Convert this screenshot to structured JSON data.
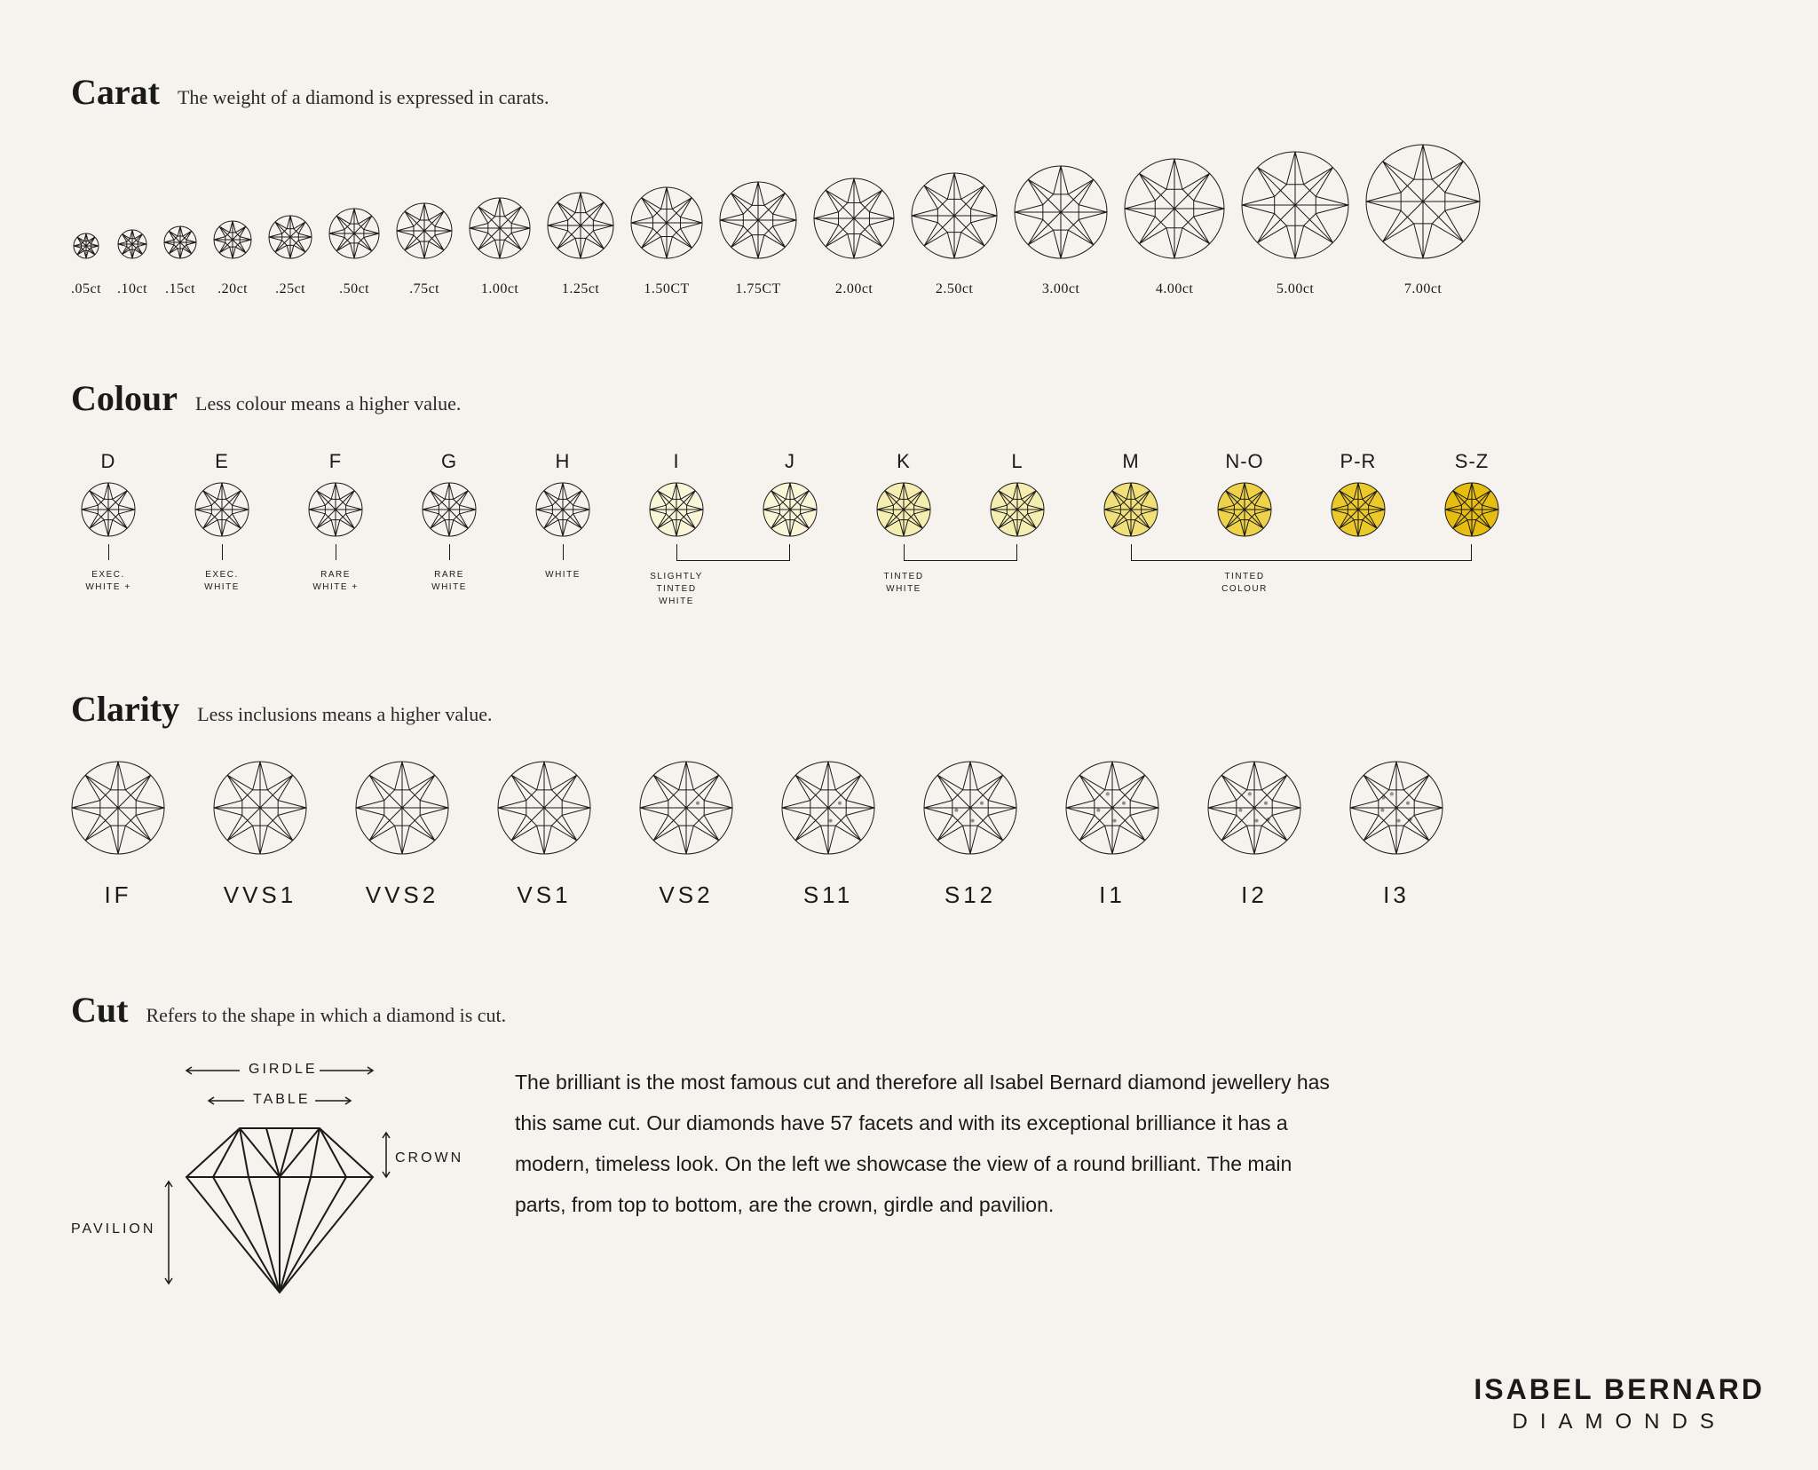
{
  "background_color": "#f6f3ee",
  "stroke_color": "#1a1a1a",
  "carat": {
    "title": "Carat",
    "subtitle": "The weight of a diamond is expressed in carats.",
    "items": [
      {
        "label": ".05ct",
        "size": 30
      },
      {
        "label": ".10ct",
        "size": 34
      },
      {
        "label": ".15ct",
        "size": 38
      },
      {
        "label": ".20ct",
        "size": 44
      },
      {
        "label": ".25ct",
        "size": 50
      },
      {
        "label": ".50ct",
        "size": 58
      },
      {
        "label": ".75ct",
        "size": 64
      },
      {
        "label": "1.00ct",
        "size": 70
      },
      {
        "label": "1.25ct",
        "size": 76
      },
      {
        "label": "1.50CT",
        "size": 82
      },
      {
        "label": "1.75CT",
        "size": 88
      },
      {
        "label": "2.00ct",
        "size": 92
      },
      {
        "label": "2.50ct",
        "size": 98
      },
      {
        "label": "3.00ct",
        "size": 106
      },
      {
        "label": "4.00ct",
        "size": 114
      },
      {
        "label": "5.00ct",
        "size": 122
      },
      {
        "label": "7.00ct",
        "size": 130
      }
    ]
  },
  "colour": {
    "title": "Colour",
    "subtitle": "Less colour means a higher value.",
    "diamond_size": 62,
    "items": [
      {
        "grade": "D",
        "fill": "none",
        "desc": "EXEC.\nWHITE +"
      },
      {
        "grade": "E",
        "fill": "none",
        "desc": "EXEC.\nWHITE"
      },
      {
        "grade": "F",
        "fill": "none",
        "desc": "RARE\nWHITE +"
      },
      {
        "grade": "G",
        "fill": "none",
        "desc": "RARE\nWHITE"
      },
      {
        "grade": "H",
        "fill": "none",
        "desc": "WHITE"
      },
      {
        "grade": "I",
        "fill": "#fbf6d8",
        "desc": ""
      },
      {
        "grade": "J",
        "fill": "#fbf6d8",
        "desc": ""
      },
      {
        "grade": "K",
        "fill": "#f6eeb1",
        "desc": ""
      },
      {
        "grade": "L",
        "fill": "#f6eeb1",
        "desc": ""
      },
      {
        "grade": "M",
        "fill": "#f1e07a",
        "desc": ""
      },
      {
        "grade": "N-O",
        "fill": "#eed34a",
        "desc": ""
      },
      {
        "grade": "P-R",
        "fill": "#ecc92a",
        "desc": ""
      },
      {
        "grade": "S-Z",
        "fill": "#e7bd10",
        "desc": ""
      }
    ],
    "groups": [
      {
        "label": "SLIGHTLY\nTINTED WHITE",
        "from": 5,
        "to": 6
      },
      {
        "label": "TINTED\nWHITE",
        "from": 7,
        "to": 8
      },
      {
        "label": "TINTED\nCOLOUR",
        "from": 9,
        "to": 12
      }
    ]
  },
  "clarity": {
    "title": "Clarity",
    "subtitle": "Less inclusions means a higher value.",
    "diamond_size": 106,
    "items": [
      {
        "label": "IF",
        "inclusions": 0
      },
      {
        "label": "VVS1",
        "inclusions": 0
      },
      {
        "label": "VVS2",
        "inclusions": 0
      },
      {
        "label": "VS1",
        "inclusions": 0
      },
      {
        "label": "VS2",
        "inclusions": 1
      },
      {
        "label": "S11",
        "inclusions": 2
      },
      {
        "label": "S12",
        "inclusions": 3
      },
      {
        "label": "I1",
        "inclusions": 4
      },
      {
        "label": "I2",
        "inclusions": 5
      },
      {
        "label": "I3",
        "inclusions": 6
      }
    ]
  },
  "cut": {
    "title": "Cut",
    "subtitle": "Refers to the shape in which a diamond is cut.",
    "labels": {
      "girdle": "GIRDLE",
      "table": "TABLE",
      "crown": "CROWN",
      "pavilion": "PAVILION"
    },
    "body": "The brilliant is the most famous cut and therefore all Isabel Bernard diamond jewellery has this same cut. Our diamonds have 57 facets and with its exceptional brilliance it has a modern, timeless look. On the left we showcase the view of a round brilliant. The main parts, from top to bottom, are the crown, girdle and pavilion."
  },
  "brand": {
    "name": "ISABEL BERNARD",
    "sub": "DIAMONDS"
  }
}
